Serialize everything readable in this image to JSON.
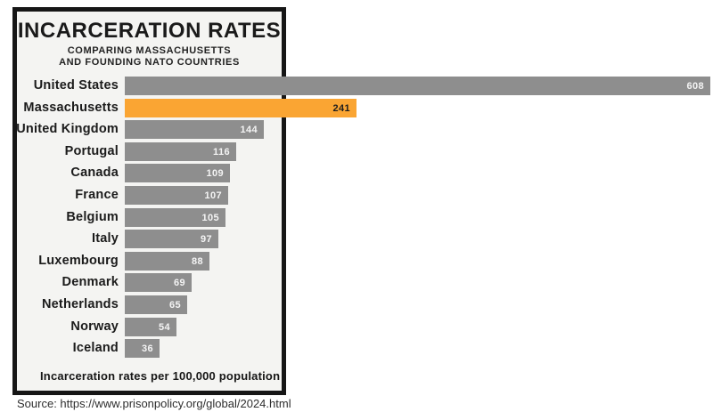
{
  "header": {
    "title": "INCARCERATION RATES",
    "subtitle_line1": "COMPARING MASSACHUSETTS",
    "subtitle_line2": "AND FOUNDING NATO COUNTRIES"
  },
  "footnote": "Incarceration rates per 100,000 population",
  "source": "Source: https://www.prisonpolicy.org/global/2024.html",
  "colors": {
    "panel_background": "#f4f4f2",
    "panel_border": "#161616",
    "bar_gray": "#8e8e8e",
    "bar_highlight_orange": "#FAA533",
    "value_label_on_gray": "#f4f4f4",
    "value_label_on_highlight": "#1d1d1d"
  },
  "chart_data": {
    "type": "bar",
    "orientation": "horizontal",
    "title": "INCARCERATION RATES",
    "subtitle": "COMPARING MASSACHUSETTS AND FOUNDING NATO COUNTRIES",
    "xlabel": "Incarceration rates per 100,000 population",
    "xlim": [
      0,
      608
    ],
    "grid": false,
    "legend": false,
    "categories": [
      "United States",
      "Massachusetts",
      "United Kingdom",
      "Portugal",
      "Canada",
      "France",
      "Belgium",
      "Italy",
      "Luxembourg",
      "Denmark",
      "Netherlands",
      "Norway",
      "Iceland"
    ],
    "values": [
      608,
      241,
      144,
      116,
      109,
      107,
      105,
      97,
      88,
      69,
      65,
      54,
      36
    ],
    "value_labels": [
      "608",
      "241",
      "144",
      "116",
      "109",
      "107",
      "105",
      "97",
      "88",
      "69",
      "65",
      "54",
      "36"
    ],
    "highlight_category": "Massachusetts",
    "bar_color": "#8e8e8e",
    "highlight_color": "#FAA533"
  }
}
